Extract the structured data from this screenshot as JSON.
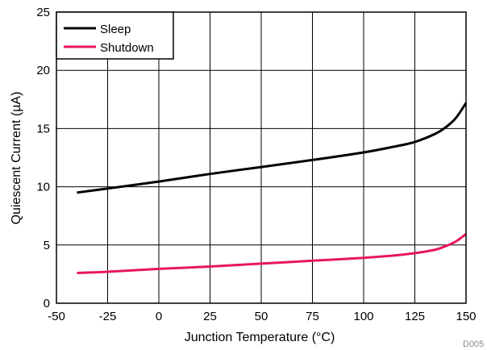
{
  "chart_data": {
    "type": "line",
    "title": "",
    "xlabel": "Junction Temperature (°C)",
    "ylabel": "Quiescent Current (µA)",
    "xlim": [
      -50,
      150
    ],
    "ylim": [
      0,
      25
    ],
    "xticks": [
      -50,
      -25,
      0,
      25,
      50,
      75,
      100,
      125,
      150
    ],
    "yticks": [
      0,
      5,
      10,
      15,
      20,
      25
    ],
    "grid": true,
    "legend_position": "top-left",
    "figure_code": "D005",
    "series": [
      {
        "name": "Sleep",
        "color": "#000000",
        "x": [
          -40,
          -25,
          0,
          25,
          50,
          75,
          100,
          115,
          125,
          135,
          140,
          145,
          150
        ],
        "y": [
          9.5,
          9.85,
          10.45,
          11.1,
          11.7,
          12.3,
          12.95,
          13.45,
          13.85,
          14.55,
          15.1,
          15.9,
          17.2
        ]
      },
      {
        "name": "Shutdown",
        "color": "#e8175d",
        "x": [
          -40,
          -25,
          0,
          25,
          50,
          75,
          100,
          115,
          125,
          135,
          140,
          145,
          150
        ],
        "y": [
          2.6,
          2.7,
          2.95,
          3.15,
          3.4,
          3.65,
          3.9,
          4.1,
          4.3,
          4.6,
          4.9,
          5.3,
          5.95
        ]
      }
    ]
  }
}
